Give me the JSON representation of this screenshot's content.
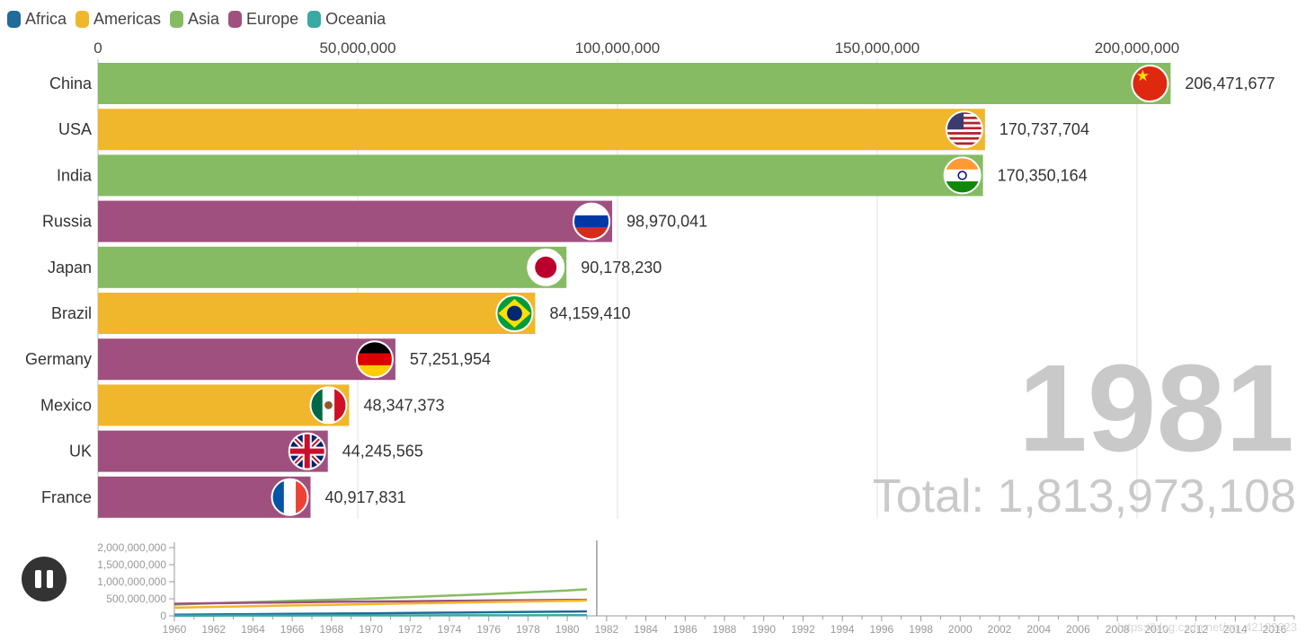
{
  "legend": [
    {
      "label": "Africa",
      "color": "#1f6b99"
    },
    {
      "label": "Americas",
      "color": "#f0b72c"
    },
    {
      "label": "Asia",
      "color": "#86bb63"
    },
    {
      "label": "Europe",
      "color": "#a0507f"
    },
    {
      "label": "Oceania",
      "color": "#3aa8a3"
    }
  ],
  "chart_data": [
    {
      "type": "bar",
      "orientation": "horizontal",
      "year": "1981",
      "total": "Total: 1,813,973,108",
      "xlim": [
        0,
        225000000
      ],
      "xticks": [
        0,
        50000000,
        100000000,
        150000000,
        200000000
      ],
      "xtick_labels": [
        "0",
        "50,000,000",
        "100,000,000",
        "150,000,000",
        "200,000,000"
      ],
      "categories": [
        "China",
        "USA",
        "India",
        "Russia",
        "Japan",
        "Brazil",
        "Germany",
        "Mexico",
        "UK",
        "France"
      ],
      "values": [
        206471677,
        170737704,
        170350164,
        98970041,
        90178230,
        84159410,
        57251954,
        48347373,
        44245565,
        40917831
      ],
      "value_labels": [
        "206,471,677",
        "170,737,704",
        "170,350,164",
        "98,970,041",
        "90,178,230",
        "84,159,410",
        "57,251,954",
        "48,347,373",
        "44,245,565",
        "40,917,831"
      ],
      "region": [
        "Asia",
        "Americas",
        "Asia",
        "Europe",
        "Asia",
        "Americas",
        "Europe",
        "Americas",
        "Europe",
        "Europe"
      ],
      "flags": [
        "china-flag",
        "usa-flag",
        "india-flag",
        "russia-flag",
        "japan-flag",
        "brazil-flag",
        "germany-flag",
        "mexico-flag",
        "uk-flag",
        "france-flag"
      ]
    },
    {
      "type": "line",
      "x": [
        1960,
        1962,
        1964,
        1966,
        1968,
        1970,
        1972,
        1974,
        1976,
        1978,
        1980,
        1981
      ],
      "xlim": [
        1960,
        2017
      ],
      "xtick_labels": [
        "1960",
        "1962",
        "1964",
        "1966",
        "1968",
        "1970",
        "1972",
        "1974",
        "1976",
        "1978",
        "1980",
        "1982",
        "1984",
        "1986",
        "1988",
        "1990",
        "1992",
        "1994",
        "1996",
        "1998",
        "2000",
        "2002",
        "2004",
        "2006",
        "2008",
        "2010",
        "2012",
        "2014",
        "2016"
      ],
      "ylim": [
        0,
        2000000000
      ],
      "yticks": [
        0,
        500000000,
        1000000000,
        1500000000,
        2000000000
      ],
      "ytick_labels": [
        "0",
        "500,000,000",
        "1,000,000,000",
        "1,500,000,000",
        "2,000,000,000"
      ],
      "current_year": 1981,
      "series": [
        {
          "name": "Asia",
          "values": [
            330000000,
            370000000,
            405000000,
            440000000,
            475000000,
            510000000,
            550000000,
            595000000,
            640000000,
            690000000,
            745000000,
            780000000
          ]
        },
        {
          "name": "Europe",
          "values": [
            355000000,
            370000000,
            385000000,
            395000000,
            410000000,
            420000000,
            430000000,
            440000000,
            450000000,
            458000000,
            465000000,
            470000000
          ]
        },
        {
          "name": "Americas",
          "values": [
            240000000,
            262000000,
            285000000,
            305000000,
            325000000,
            345000000,
            365000000,
            385000000,
            405000000,
            420000000,
            440000000,
            450000000
          ]
        },
        {
          "name": "Africa",
          "values": [
            35000000,
            42000000,
            50000000,
            57000000,
            65000000,
            75000000,
            85000000,
            95000000,
            105000000,
            115000000,
            125000000,
            132000000
          ]
        },
        {
          "name": "Oceania",
          "values": [
            8000000,
            9000000,
            10000000,
            11000000,
            12000000,
            13000000,
            14000000,
            15000000,
            16000000,
            17000000,
            18000000,
            19000000
          ]
        }
      ]
    }
  ],
  "watermark": "https://blog.csdn.net/qq_42102623"
}
